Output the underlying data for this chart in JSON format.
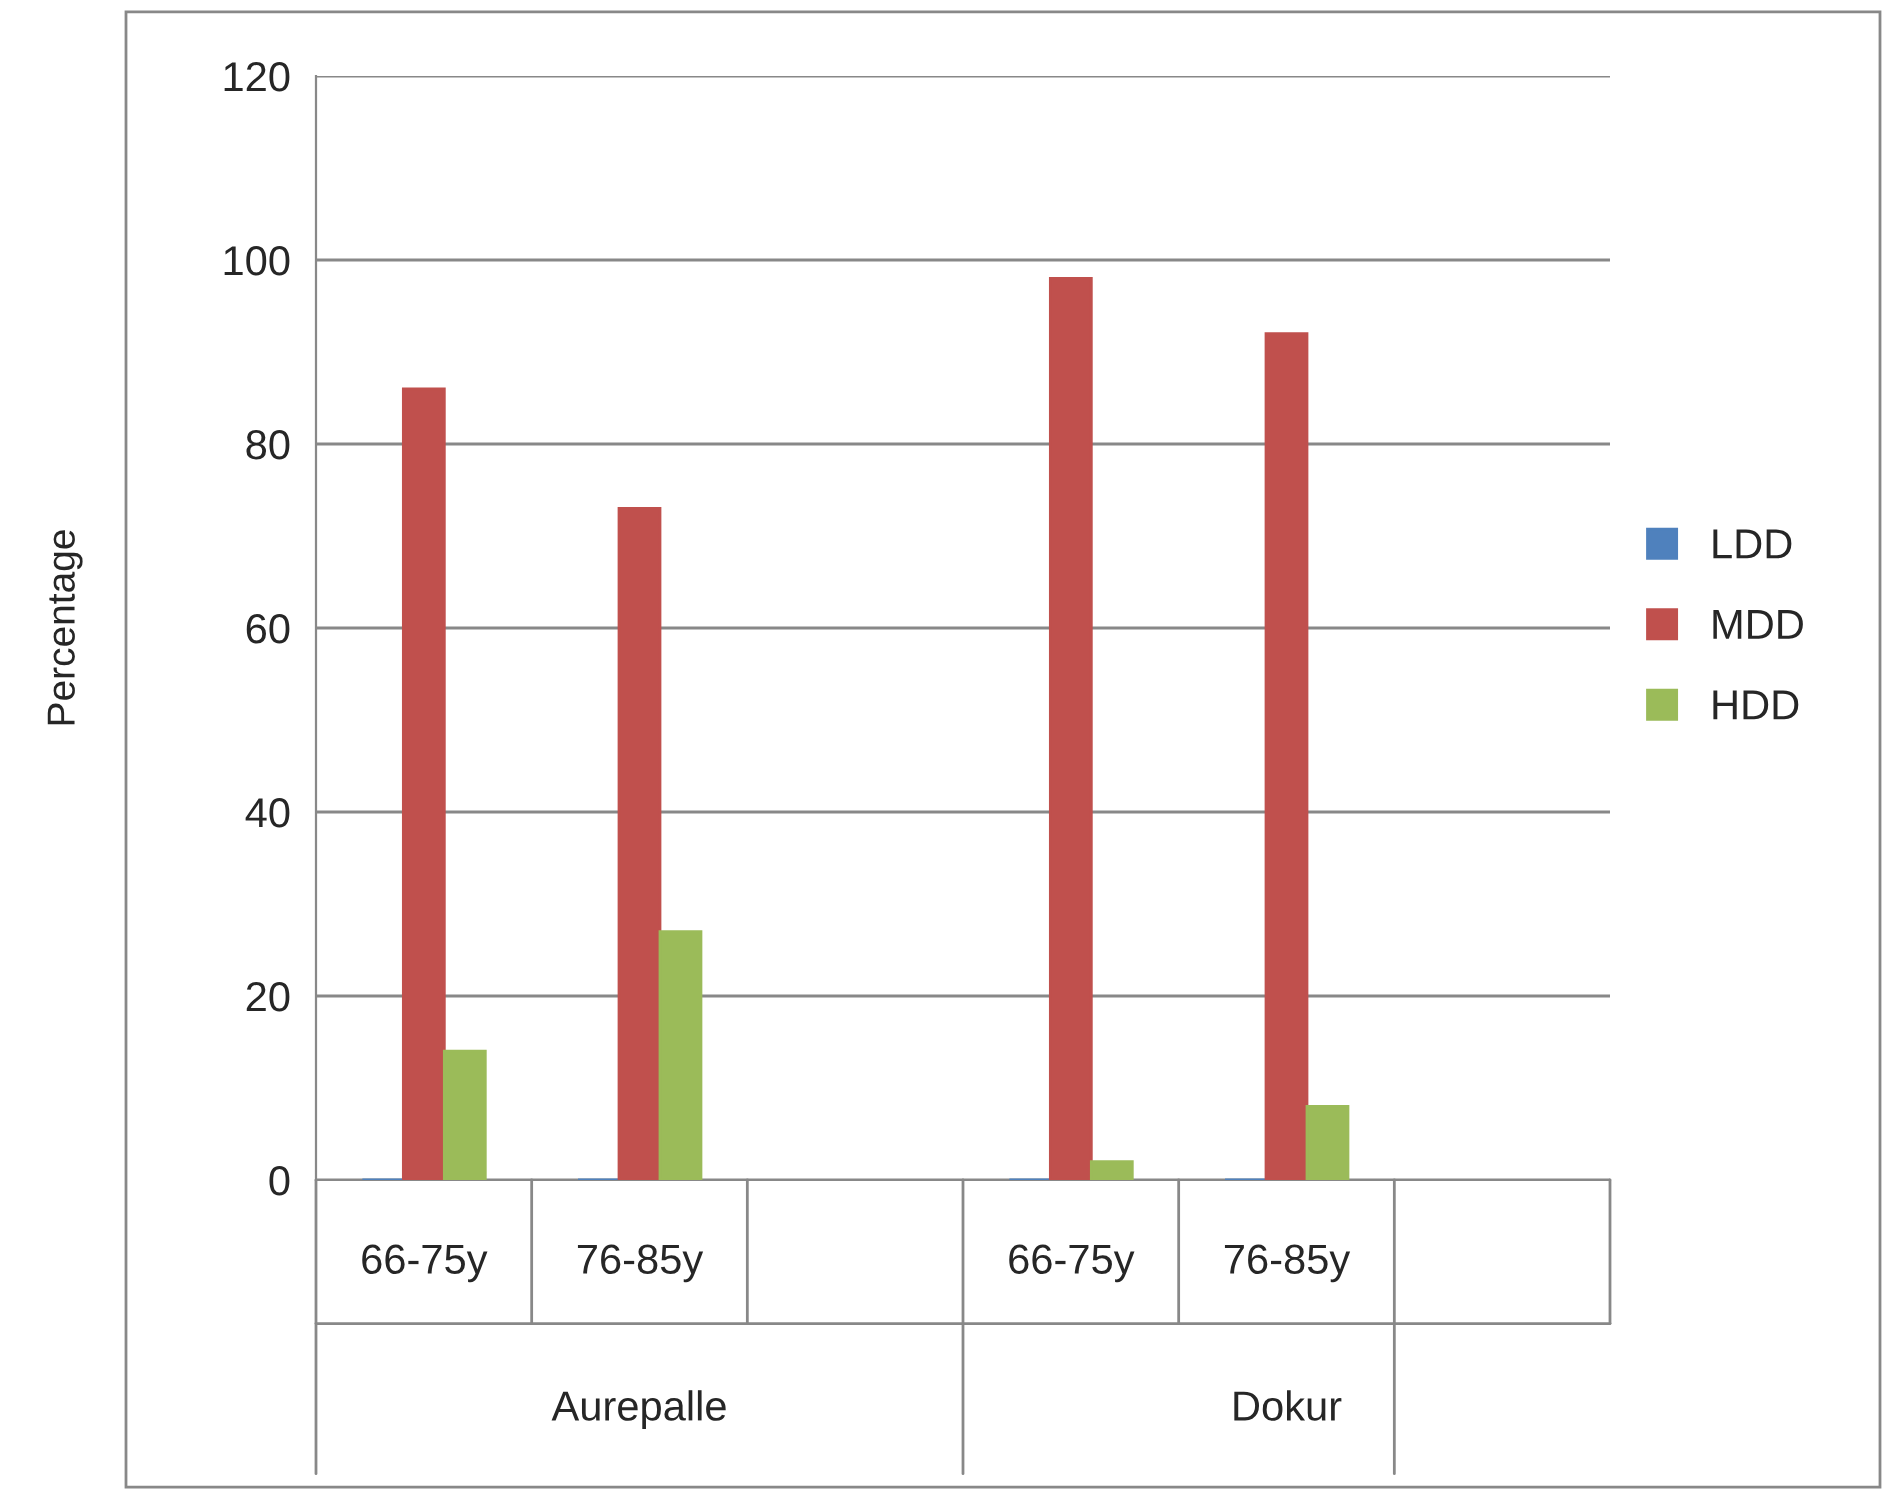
{
  "chart_data": {
    "type": "bar",
    "ylabel": "Percentage",
    "categories": [
      "66-75y",
      "76-85y",
      null,
      "66-75y",
      "76-85y",
      null
    ],
    "series": [
      {
        "name": "LDD",
        "color": "#4f81bd",
        "values": [
          0,
          0,
          null,
          0,
          0,
          null
        ]
      },
      {
        "name": "MDD",
        "color": "#c0504d",
        "values": [
          86,
          73,
          null,
          98,
          92,
          null
        ]
      },
      {
        "name": "HDD",
        "color": "#9bbb59",
        "values": [
          14,
          27,
          null,
          2,
          8,
          null
        ]
      }
    ],
    "annotations": [
      "Aurepalle",
      "Dokur"
    ],
    "ylim": [
      0,
      120
    ],
    "yticks": [
      0,
      20,
      40,
      60,
      80,
      100,
      120
    ],
    "grid": "y",
    "legend": "right"
  }
}
